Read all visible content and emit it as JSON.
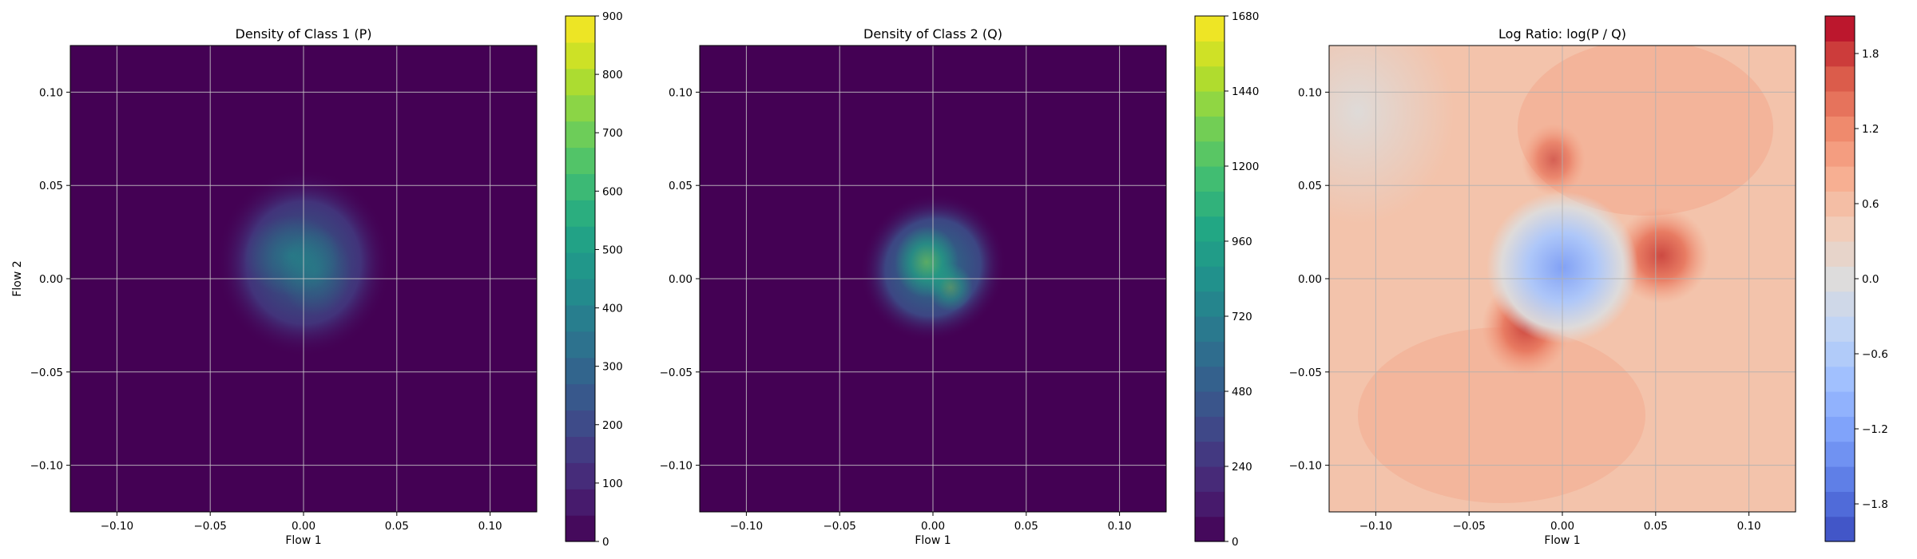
{
  "chart_data": [
    {
      "type": "heatmap",
      "title": "Density of Class 1 (P)",
      "xlabel": "Flow 1",
      "ylabel": "Flow 2",
      "xlim": [
        -0.125,
        0.125
      ],
      "ylim": [
        -0.125,
        0.125
      ],
      "xticks": [
        -0.1,
        -0.05,
        0.0,
        0.05,
        0.1
      ],
      "yticks": [
        -0.1,
        -0.05,
        0.0,
        0.05,
        0.1
      ],
      "xtick_labels": [
        "−0.10",
        "−0.05",
        "0.00",
        "0.05",
        "0.10"
      ],
      "ytick_labels": [
        "−0.10",
        "−0.05",
        "0.00",
        "0.05",
        "0.10"
      ],
      "grid": true,
      "colormap": "viridis",
      "colorbar": {
        "min": 0,
        "max": 900,
        "ticks": [
          0,
          100,
          200,
          300,
          400,
          500,
          600,
          700,
          800,
          900
        ],
        "tick_labels": [
          "0",
          "100",
          "200",
          "300",
          "400",
          "500",
          "600",
          "700",
          "800",
          "900"
        ],
        "levels": 20
      },
      "description_values": {
        "center": [
          0.0,
          0.0
        ],
        "peak_density": 600,
        "spread": 0.045
      }
    },
    {
      "type": "heatmap",
      "title": "Density of Class 2 (Q)",
      "xlabel": "Flow 1",
      "ylabel": "",
      "xlim": [
        -0.125,
        0.125
      ],
      "ylim": [
        -0.125,
        0.125
      ],
      "xticks": [
        -0.1,
        -0.05,
        0.0,
        0.05,
        0.1
      ],
      "yticks": [
        -0.1,
        -0.05,
        0.0,
        0.05,
        0.1
      ],
      "xtick_labels": [
        "−0.10",
        "−0.05",
        "0.00",
        "0.05",
        "0.10"
      ],
      "ytick_labels": [
        "−0.10",
        "−0.05",
        "0.00",
        "0.05",
        "0.10"
      ],
      "grid": true,
      "colormap": "viridis",
      "colorbar": {
        "min": 0,
        "max": 1680,
        "ticks": [
          0,
          240,
          480,
          720,
          960,
          1200,
          1440,
          1680
        ],
        "tick_labels": [
          "0",
          "240",
          "480",
          "720",
          "960",
          "1200",
          "1440",
          "1680"
        ],
        "levels": 21
      },
      "description_values": {
        "center": [
          0.0,
          0.0
        ],
        "peak_density": 1250,
        "spread": 0.035
      }
    },
    {
      "type": "heatmap",
      "title": "Log Ratio: log(P / Q)",
      "xlabel": "Flow 1",
      "ylabel": "",
      "xlim": [
        -0.125,
        0.125
      ],
      "ylim": [
        -0.125,
        0.125
      ],
      "xticks": [
        -0.1,
        -0.05,
        0.0,
        0.05,
        0.1
      ],
      "yticks": [
        -0.1,
        -0.05,
        0.0,
        0.05,
        0.1
      ],
      "xtick_labels": [
        "−0.10",
        "−0.05",
        "0.00",
        "0.05",
        "0.10"
      ],
      "ytick_labels": [
        "−0.10",
        "−0.05",
        "0.00",
        "0.05",
        "0.10"
      ],
      "grid": true,
      "colormap": "coolwarm",
      "colorbar": {
        "min": -2.1,
        "max": 2.1,
        "ticks": [
          -1.8,
          -1.2,
          -0.6,
          0.0,
          0.6,
          1.2,
          1.8
        ],
        "tick_labels": [
          "−1.8",
          "−1.2",
          "−0.6",
          "0.0",
          "0.6",
          "1.2",
          "1.8"
        ],
        "levels": 21
      },
      "description_values": {
        "background_value": 0.6,
        "center_low_value": -1.2,
        "high_region_value": 1.6
      }
    }
  ]
}
